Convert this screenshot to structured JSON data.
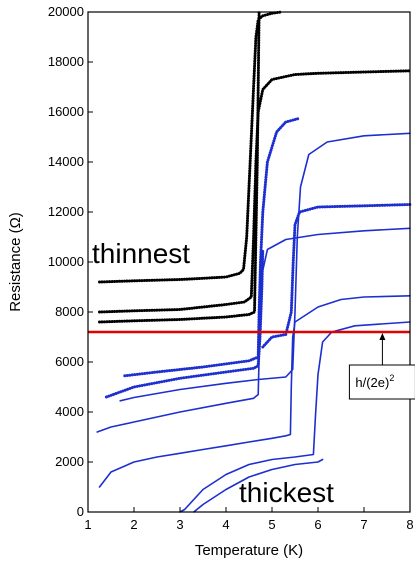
{
  "chart_data": {
    "type": "line",
    "title": "",
    "xlabel": "Temperature (K)",
    "ylabel": "Resistance (Ω)",
    "xlim": [
      1,
      8
    ],
    "ylim": [
      0,
      20000
    ],
    "x_ticks": [
      "1",
      "2",
      "3",
      "4",
      "5",
      "6",
      "7",
      "8"
    ],
    "y_ticks": [
      "0",
      "2000",
      "4000",
      "6000",
      "8000",
      "10000",
      "12000",
      "14000",
      "16000",
      "18000",
      "20000"
    ],
    "grid": false,
    "legend": "none",
    "reference_line": {
      "y": 7200,
      "color": "#e00000"
    },
    "annotations": {
      "thinnest": "thinnest",
      "thickest": "thickest",
      "quantum_label": "h/(2e)",
      "quantum_label_sup": "2",
      "quantum_label_at": {
        "x": 7.4,
        "y": 5200
      },
      "arrow_target": {
        "x": 7.4,
        "y": 7200
      }
    },
    "series": [
      {
        "color": "#000000",
        "style": "dots",
        "points": [
          [
            1.25,
            9200
          ],
          [
            2,
            9250
          ],
          [
            3,
            9300
          ],
          [
            3.5,
            9350
          ],
          [
            4,
            9400
          ],
          [
            4.3,
            9550
          ],
          [
            4.38,
            9700
          ],
          [
            4.45,
            11000
          ],
          [
            4.5,
            13000
          ],
          [
            4.55,
            15000
          ],
          [
            4.6,
            17000
          ],
          [
            4.65,
            19000
          ],
          [
            4.7,
            19700
          ],
          [
            4.8,
            19850
          ],
          [
            5,
            19950
          ],
          [
            5.2,
            20000
          ]
        ]
      },
      {
        "color": "#000000",
        "style": "dots",
        "points": [
          [
            1.25,
            8000
          ],
          [
            2,
            8050
          ],
          [
            3,
            8100
          ],
          [
            4,
            8300
          ],
          [
            4.4,
            8400
          ],
          [
            4.55,
            8600
          ],
          [
            4.6,
            11000
          ],
          [
            4.65,
            14000
          ],
          [
            4.7,
            16000
          ],
          [
            4.8,
            16900
          ],
          [
            5,
            17300
          ],
          [
            5.5,
            17500
          ],
          [
            6,
            17550
          ],
          [
            7,
            17600
          ],
          [
            8,
            17650
          ]
        ]
      },
      {
        "color": "#000000",
        "style": "dots",
        "points": [
          [
            1.25,
            7600
          ],
          [
            2,
            7650
          ],
          [
            3,
            7700
          ],
          [
            4,
            7800
          ],
          [
            4.5,
            7900
          ],
          [
            4.62,
            8000
          ],
          [
            4.65,
            11000
          ],
          [
            4.68,
            14000
          ],
          [
            4.7,
            17000
          ],
          [
            4.72,
            20000
          ]
        ]
      },
      {
        "color": "#1d2fd0",
        "style": "dots",
        "points": [
          [
            1.8,
            5450
          ],
          [
            2.5,
            5600
          ],
          [
            3.5,
            5800
          ],
          [
            4.5,
            6050
          ],
          [
            4.7,
            6200
          ],
          [
            4.72,
            8000
          ],
          [
            4.75,
            10000
          ],
          [
            4.8,
            12000
          ],
          [
            4.9,
            14000
          ],
          [
            5.1,
            15200
          ],
          [
            5.3,
            15600
          ],
          [
            5.6,
            15750
          ]
        ]
      },
      {
        "color": "#1d2fd0",
        "style": "dots",
        "points": [
          [
            1.4,
            4600
          ],
          [
            2,
            5000
          ],
          [
            3,
            5350
          ],
          [
            4,
            5600
          ],
          [
            4.6,
            5750
          ],
          [
            4.7,
            5850
          ],
          [
            4.74,
            7000
          ],
          [
            4.78,
            9000
          ],
          [
            4.8,
            10500
          ]
        ]
      },
      {
        "color": "#1d2fd0",
        "style": "line",
        "points": [
          [
            1.7,
            4450
          ],
          [
            2,
            4580
          ],
          [
            3,
            4900
          ],
          [
            4,
            5150
          ],
          [
            4.7,
            5300
          ],
          [
            5.3,
            5400
          ],
          [
            5.45,
            5700
          ],
          [
            5.5,
            8000
          ],
          [
            5.55,
            11000
          ],
          [
            5.62,
            13000
          ],
          [
            5.8,
            14300
          ],
          [
            6.2,
            14800
          ],
          [
            7,
            15050
          ],
          [
            8,
            15150
          ]
        ]
      },
      {
        "color": "#1d2fd0",
        "style": "dots",
        "points": [
          [
            4.8,
            6600
          ],
          [
            5,
            7000
          ],
          [
            5.3,
            7100
          ],
          [
            5.42,
            8000
          ],
          [
            5.46,
            10000
          ],
          [
            5.5,
            11500
          ],
          [
            5.6,
            12000
          ],
          [
            6,
            12200
          ],
          [
            7,
            12250
          ],
          [
            8,
            12300
          ]
        ]
      },
      {
        "color": "#1d2fd0",
        "style": "line",
        "points": [
          [
            1.2,
            3200
          ],
          [
            1.5,
            3400
          ],
          [
            2,
            3600
          ],
          [
            3,
            4000
          ],
          [
            4,
            4350
          ],
          [
            4.6,
            4550
          ],
          [
            4.7,
            4700
          ],
          [
            4.73,
            7000
          ],
          [
            4.78,
            9500
          ],
          [
            4.9,
            10500
          ],
          [
            5.3,
            10900
          ],
          [
            6,
            11100
          ],
          [
            7,
            11250
          ],
          [
            8,
            11350
          ]
        ]
      },
      {
        "color": "#1d2fd0",
        "style": "line",
        "points": [
          [
            1.25,
            1000
          ],
          [
            1.5,
            1600
          ],
          [
            2,
            2000
          ],
          [
            2.5,
            2200
          ],
          [
            3,
            2350
          ],
          [
            3.5,
            2500
          ],
          [
            4,
            2650
          ],
          [
            4.5,
            2800
          ],
          [
            5,
            2950
          ],
          [
            5.3,
            3050
          ],
          [
            5.4,
            3100
          ],
          [
            5.42,
            5000
          ],
          [
            5.45,
            7000
          ],
          [
            5.5,
            7600
          ],
          [
            6,
            8200
          ],
          [
            6.5,
            8500
          ],
          [
            7,
            8600
          ],
          [
            8,
            8650
          ]
        ]
      },
      {
        "color": "#1d2fd0",
        "style": "line",
        "points": [
          [
            3,
            0
          ],
          [
            3.1,
            100
          ],
          [
            3.5,
            900
          ],
          [
            4,
            1500
          ],
          [
            4.5,
            1900
          ],
          [
            5,
            2100
          ],
          [
            5.5,
            2200
          ],
          [
            5.9,
            2300
          ],
          [
            5.95,
            4000
          ],
          [
            6,
            5500
          ],
          [
            6.1,
            6800
          ],
          [
            6.3,
            7200
          ],
          [
            6.8,
            7450
          ],
          [
            8,
            7600
          ]
        ]
      },
      {
        "color": "#1d2fd0",
        "style": "line",
        "points": [
          [
            3.3,
            0
          ],
          [
            3.5,
            300
          ],
          [
            4,
            900
          ],
          [
            4.5,
            1400
          ],
          [
            5,
            1700
          ],
          [
            5.5,
            1900
          ],
          [
            6,
            2000
          ],
          [
            6.1,
            2100
          ]
        ]
      }
    ]
  }
}
